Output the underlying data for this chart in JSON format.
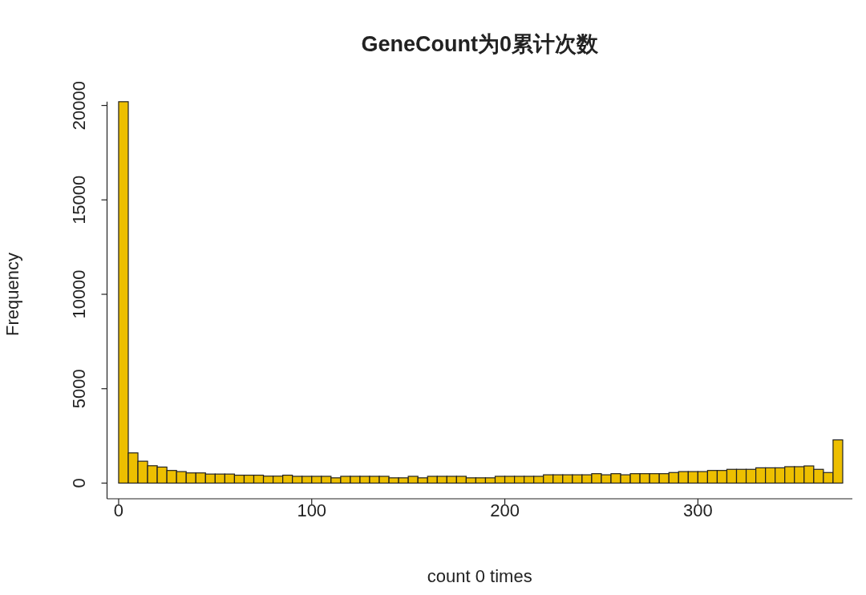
{
  "chart_data": {
    "type": "histogram",
    "title": "GeneCount为0累计次数",
    "xlabel": "count 0 times",
    "ylabel": "Frequency",
    "bins": [
      0,
      5,
      10,
      15,
      20,
      25,
      30,
      35,
      40,
      45,
      50,
      55,
      60,
      65,
      70,
      75,
      80,
      85,
      90,
      95,
      100,
      105,
      110,
      115,
      120,
      125,
      130,
      135,
      140,
      145,
      150,
      155,
      160,
      165,
      170,
      175,
      180,
      185,
      190,
      195,
      200,
      205,
      210,
      215,
      220,
      225,
      230,
      235,
      240,
      245,
      250,
      255,
      260,
      265,
      270,
      275,
      280,
      285,
      290,
      295,
      300,
      305,
      310,
      315,
      320,
      325,
      330,
      335,
      340,
      345,
      350,
      355,
      360,
      365,
      370,
      375
    ],
    "values": [
      20200,
      1600,
      1160,
      920,
      850,
      670,
      610,
      540,
      540,
      480,
      480,
      480,
      420,
      420,
      420,
      370,
      370,
      420,
      360,
      360,
      360,
      360,
      280,
      360,
      360,
      360,
      360,
      360,
      280,
      280,
      360,
      280,
      360,
      360,
      360,
      360,
      280,
      280,
      280,
      360,
      360,
      360,
      360,
      360,
      440,
      440,
      440,
      440,
      440,
      500,
      440,
      500,
      440,
      500,
      500,
      500,
      500,
      560,
      610,
      610,
      610,
      670,
      670,
      730,
      730,
      730,
      810,
      810,
      810,
      870,
      870,
      910,
      730,
      560,
      2290
    ],
    "color": "#edbf00",
    "xlim": [
      -6,
      380
    ],
    "ylim": [
      -830,
      20200
    ],
    "xticks": [
      0,
      100,
      200,
      300
    ],
    "yticks": [
      0,
      5000,
      10000,
      15000,
      20000
    ]
  }
}
